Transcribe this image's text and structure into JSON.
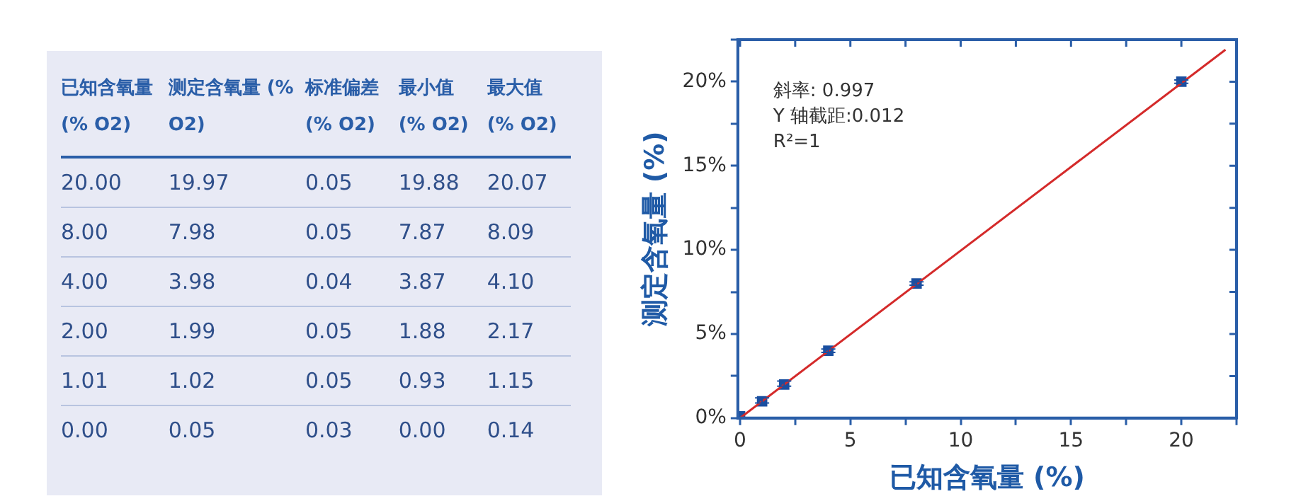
{
  "chart_data": [
    {
      "type": "other",
      "annotations": [
        "已知含氧量 (% O2)",
        "测定含氧量 (% O2)",
        "标准偏差 (% O2)",
        "最小值 (% O2)",
        "最大值 (% O2)",
        "20.00",
        "19.97",
        "0.05",
        "19.88",
        "20.07",
        "8.00",
        "7.98",
        "0.05",
        "7.87",
        "8.09",
        "4.00",
        "3.98",
        "0.04",
        "3.87",
        "4.10",
        "2.00",
        "1.99",
        "0.05",
        "1.88",
        "2.17",
        "1.01",
        "1.02",
        "0.05",
        "0.93",
        "1.15",
        "0.00",
        "0.05",
        "0.03",
        "0.00",
        "0.14"
      ]
    },
    {
      "type": "scatter",
      "xlabel": "已知含氧量 (%)",
      "ylabel": "测定含氧量 (%)",
      "annotations": [
        "斜率: 0.997",
        "Y 轴截距:0.012",
        "R²=1"
      ],
      "xlim": [
        -0.1,
        22.5
      ],
      "ylim": [
        0,
        22.5
      ],
      "xticks": [
        0,
        {
          "value": 2.5,
          "label": null
        },
        5,
        {
          "value": 7.5,
          "label": null
        },
        10,
        {
          "value": 12.5,
          "label": null
        },
        15,
        {
          "value": 17.5,
          "label": null
        },
        20,
        {
          "value": 22.5,
          "label": null
        }
      ],
      "yticks": [
        {
          "value": 0,
          "label": "0%"
        },
        {
          "value": 2.5,
          "label": null
        },
        {
          "value": 5,
          "label": "5%"
        },
        {
          "value": 7.5,
          "label": null
        },
        {
          "value": 10,
          "label": "10%"
        },
        {
          "value": 12.5,
          "label": null
        },
        {
          "value": 15,
          "label": "15%"
        },
        {
          "value": 17.5,
          "label": null
        },
        {
          "value": 20,
          "label": "20%"
        },
        {
          "value": 22.5,
          "label": null
        }
      ],
      "grid": false,
      "legend": false,
      "marker": "square",
      "series": [
        {
          "type": "line",
          "color": "#d42a2a",
          "x": [
            0,
            22
          ],
          "values": [
            0.0,
            21.9
          ],
          "marker": "none"
        },
        {
          "type": "scatter",
          "color": "#1a4fa0",
          "x": [
            20,
            8,
            4,
            2,
            1,
            0
          ],
          "values": [
            20.0,
            8.0,
            4.0,
            2.0,
            1.0,
            0.1
          ],
          "errors": [
            [
              19.9,
              20.1
            ],
            [
              7.9,
              8.1
            ],
            [
              3.9,
              4.1
            ],
            [
              1.9,
              2.2
            ],
            [
              0.9,
              1.2
            ],
            null
          ]
        }
      ]
    }
  ]
}
